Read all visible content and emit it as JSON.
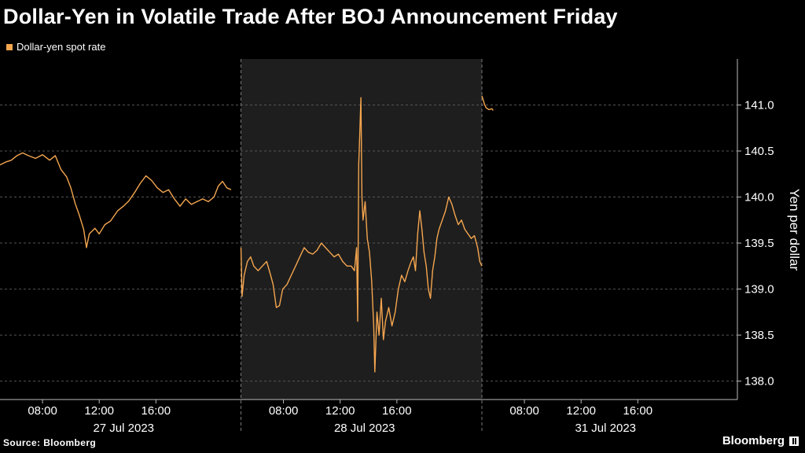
{
  "title": "Dollar-Yen in Volatile Trade After BOJ Announcement Friday",
  "legend": {
    "label": "Dollar-yen spot rate",
    "color": "#f5a64f"
  },
  "source": "Source: Bloomberg",
  "brand": "Bloomberg",
  "colors": {
    "background": "#000000",
    "shaded_band": "#1e1e1e",
    "line": "#f5a64f",
    "grid": "#555555"
  },
  "chart_data": {
    "type": "line",
    "ylabel": "Yen per dollar",
    "ylim": [
      137.8,
      141.5
    ],
    "y_ticks": [
      138.0,
      138.5,
      139.0,
      139.5,
      140.0,
      140.5,
      141.0
    ],
    "y_tick_labels": [
      "138.0",
      "138.5",
      "139.0",
      "139.5",
      "140.0",
      "140.5",
      "141.0"
    ],
    "x_unit": "hour of session",
    "x_range": [
      5,
      22
    ],
    "sessions": [
      {
        "date": "27 Jul 2023",
        "shaded": false
      },
      {
        "date": "28 Jul 2023",
        "shaded": true
      },
      {
        "date": "31 Jul 2023",
        "shaded": false
      }
    ],
    "x_tick_hours": [
      8,
      12,
      16
    ],
    "x_tick_labels": [
      "08:00",
      "12:00",
      "16:00"
    ],
    "series": [
      {
        "name": "Dollar-yen spot rate",
        "segments": [
          {
            "session": 0,
            "points": [
              [
                5.0,
                140.35
              ],
              [
                5.4,
                140.38
              ],
              [
                5.8,
                140.4
              ],
              [
                6.2,
                140.45
              ],
              [
                6.6,
                140.48
              ],
              [
                7.0,
                140.45
              ],
              [
                7.5,
                140.42
              ],
              [
                8.0,
                140.46
              ],
              [
                8.5,
                140.4
              ],
              [
                8.9,
                140.45
              ],
              [
                9.3,
                140.3
              ],
              [
                9.7,
                140.22
              ],
              [
                10.0,
                140.1
              ],
              [
                10.3,
                139.93
              ],
              [
                10.6,
                139.8
              ],
              [
                10.9,
                139.65
              ],
              [
                11.1,
                139.45
              ],
              [
                11.3,
                139.6
              ],
              [
                11.7,
                139.66
              ],
              [
                12.0,
                139.6
              ],
              [
                12.4,
                139.7
              ],
              [
                12.8,
                139.74
              ],
              [
                13.3,
                139.85
              ],
              [
                13.7,
                139.9
              ],
              [
                14.1,
                139.96
              ],
              [
                14.5,
                140.05
              ],
              [
                14.9,
                140.15
              ],
              [
                15.3,
                140.23
              ],
              [
                15.7,
                140.18
              ],
              [
                16.1,
                140.1
              ],
              [
                16.5,
                140.05
              ],
              [
                16.9,
                140.08
              ],
              [
                17.3,
                139.98
              ],
              [
                17.7,
                139.9
              ],
              [
                18.1,
                139.98
              ],
              [
                18.5,
                139.92
              ],
              [
                18.9,
                139.95
              ],
              [
                19.3,
                139.98
              ],
              [
                19.7,
                139.95
              ],
              [
                20.1,
                140.0
              ],
              [
                20.4,
                140.12
              ],
              [
                20.7,
                140.17
              ],
              [
                21.0,
                140.1
              ],
              [
                21.3,
                140.08
              ]
            ]
          },
          {
            "session": 1,
            "points": [
              [
                5.0,
                139.45
              ],
              [
                5.1,
                138.92
              ],
              [
                5.3,
                139.15
              ],
              [
                5.6,
                139.3
              ],
              [
                5.9,
                139.35
              ],
              [
                6.2,
                139.25
              ],
              [
                6.6,
                139.2
              ],
              [
                7.0,
                139.25
              ],
              [
                7.4,
                139.3
              ],
              [
                7.7,
                139.18
              ],
              [
                8.0,
                139.05
              ],
              [
                8.3,
                138.8
              ],
              [
                8.6,
                138.82
              ],
              [
                8.9,
                139.0
              ],
              [
                9.3,
                139.05
              ],
              [
                9.7,
                139.15
              ],
              [
                10.1,
                139.25
              ],
              [
                10.5,
                139.35
              ],
              [
                10.9,
                139.45
              ],
              [
                11.3,
                139.4
              ],
              [
                11.7,
                139.38
              ],
              [
                12.1,
                139.42
              ],
              [
                12.5,
                139.5
              ],
              [
                12.9,
                139.45
              ],
              [
                13.3,
                139.4
              ],
              [
                13.7,
                139.35
              ],
              [
                14.1,
                139.38
              ],
              [
                14.5,
                139.3
              ],
              [
                14.9,
                139.25
              ],
              [
                15.3,
                139.25
              ],
              [
                15.6,
                139.2
              ],
              [
                15.8,
                139.45
              ],
              [
                15.9,
                138.65
              ],
              [
                16.0,
                140.35
              ],
              [
                16.1,
                140.7
              ],
              [
                16.2,
                141.08
              ],
              [
                16.3,
                140.0
              ],
              [
                16.4,
                139.75
              ],
              [
                16.6,
                139.95
              ],
              [
                16.8,
                139.55
              ],
              [
                17.0,
                139.4
              ],
              [
                17.2,
                139.1
              ],
              [
                17.4,
                138.6
              ],
              [
                17.5,
                138.1
              ],
              [
                17.7,
                138.75
              ],
              [
                17.9,
                138.5
              ],
              [
                18.1,
                138.9
              ],
              [
                18.3,
                138.45
              ],
              [
                18.5,
                138.65
              ],
              [
                18.8,
                138.8
              ],
              [
                19.1,
                138.6
              ],
              [
                19.4,
                138.75
              ],
              [
                19.7,
                139.0
              ],
              [
                20.0,
                139.15
              ],
              [
                20.3,
                139.08
              ],
              [
                20.6,
                139.2
              ],
              [
                20.9,
                139.3
              ],
              [
                21.1,
                139.35
              ],
              [
                21.3,
                139.2
              ],
              [
                21.5,
                139.6
              ],
              [
                21.7,
                139.85
              ],
              [
                21.9,
                139.65
              ],
              [
                22.1,
                139.4
              ],
              [
                22.3,
                139.25
              ],
              [
                22.5,
                139.0
              ],
              [
                22.7,
                138.9
              ],
              [
                22.9,
                139.2
              ],
              [
                23.1,
                139.35
              ],
              [
                23.3,
                139.55
              ],
              [
                23.5,
                139.65
              ],
              [
                23.8,
                139.75
              ],
              [
                24.1,
                139.85
              ],
              [
                24.4,
                140.0
              ],
              [
                24.7,
                139.92
              ],
              [
                25.0,
                139.8
              ],
              [
                25.3,
                139.7
              ],
              [
                25.6,
                139.75
              ],
              [
                25.9,
                139.65
              ],
              [
                26.2,
                139.6
              ],
              [
                26.5,
                139.55
              ],
              [
                26.8,
                139.58
              ],
              [
                27.1,
                139.45
              ],
              [
                27.3,
                139.3
              ],
              [
                27.5,
                139.25
              ]
            ]
          },
          {
            "session": 2,
            "points": [
              [
                5.0,
                141.1
              ],
              [
                5.1,
                141.05
              ],
              [
                5.2,
                141.0
              ],
              [
                5.3,
                140.97
              ],
              [
                5.5,
                140.95
              ],
              [
                5.7,
                140.96
              ],
              [
                5.8,
                140.94
              ]
            ]
          }
        ]
      }
    ]
  }
}
